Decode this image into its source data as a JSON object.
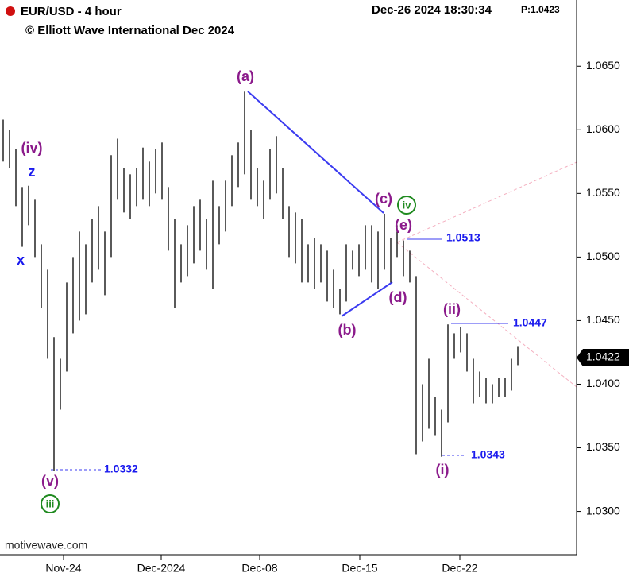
{
  "chart_data": {
    "type": "ohlc",
    "title": "EUR/USD - 4 hour",
    "subtitle": "© Elliott Wave International Dec 2024",
    "timestamp": "Dec-26 2024 18:30:34",
    "price_header": "P:1.0423",
    "current_price": "1.0422",
    "source": "motivewave.com",
    "color": "#000000",
    "x": [
      0,
      1,
      2,
      3,
      4,
      5,
      6,
      7,
      8,
      9,
      10,
      11,
      12,
      13,
      14,
      15,
      16,
      17,
      18,
      19,
      20,
      21,
      22,
      23,
      24,
      25,
      26,
      27,
      28,
      29,
      30,
      31,
      32,
      33,
      34,
      35,
      36,
      37,
      38,
      39,
      40,
      41,
      42,
      43,
      44,
      45,
      46,
      47,
      48,
      49,
      50,
      51,
      52,
      53,
      54,
      55,
      56,
      57,
      58,
      59,
      60,
      61,
      62,
      63,
      64,
      65,
      66,
      67,
      68,
      69,
      70,
      71,
      72,
      73,
      74,
      75,
      76,
      77,
      78,
      79,
      80,
      81
    ],
    "high": [
      1.0608,
      1.06,
      1.0585,
      1.0555,
      1.0556,
      1.0545,
      1.051,
      1.049,
      1.0437,
      1.042,
      1.048,
      1.05,
      1.052,
      1.051,
      1.053,
      1.054,
      1.052,
      1.058,
      1.0593,
      1.057,
      1.0565,
      1.057,
      1.0586,
      1.0575,
      1.0585,
      1.059,
      1.0555,
      1.053,
      1.051,
      1.0525,
      1.054,
      1.0545,
      1.053,
      1.056,
      1.054,
      1.056,
      1.058,
      1.059,
      1.063,
      1.06,
      1.057,
      1.056,
      1.0585,
      1.0595,
      1.057,
      1.054,
      1.0535,
      1.053,
      1.051,
      1.0515,
      1.051,
      1.0505,
      1.049,
      1.0475,
      1.051,
      1.0505,
      1.051,
      1.0525,
      1.0525,
      1.052,
      1.0534,
      1.0515,
      1.0525,
      1.0513,
      1.0505,
      1.0485,
      1.04,
      1.042,
      1.039,
      1.038,
      1.0447,
      1.044,
      1.0445,
      1.044,
      1.042,
      1.041,
      1.0405,
      1.04,
      1.0405,
      1.0405,
      1.042,
      1.043
    ],
    "low": [
      1.0575,
      1.057,
      1.054,
      1.0508,
      1.0525,
      1.05,
      1.046,
      1.042,
      1.0332,
      1.038,
      1.041,
      1.044,
      1.045,
      1.0455,
      1.048,
      1.049,
      1.047,
      1.05,
      1.0545,
      1.0535,
      1.053,
      1.054,
      1.0545,
      1.054,
      1.055,
      1.0545,
      1.0505,
      1.046,
      1.048,
      1.0485,
      1.0495,
      1.0505,
      1.049,
      1.0475,
      1.051,
      1.052,
      1.054,
      1.0555,
      1.0565,
      1.0545,
      1.054,
      1.053,
      1.0545,
      1.055,
      1.053,
      1.05,
      1.0495,
      1.048,
      1.048,
      1.0475,
      1.048,
      1.0465,
      1.046,
      1.0455,
      1.0465,
      1.049,
      1.0485,
      1.049,
      1.048,
      1.0475,
      1.049,
      1.048,
      1.05,
      1.0485,
      1.048,
      1.0345,
      1.0355,
      1.0365,
      1.036,
      1.0343,
      1.037,
      1.042,
      1.0425,
      1.041,
      1.0385,
      1.039,
      1.0385,
      1.0385,
      1.039,
      1.039,
      1.0395,
      1.0415
    ],
    "xlim": [
      -0.5,
      90.25
    ],
    "ylim": [
      1.0266,
      1.0702
    ],
    "xticks": [
      {
        "value": 9.5,
        "label": "Nov-24"
      },
      {
        "value": 24.875,
        "label": "Dec-2024"
      },
      {
        "value": 40.375,
        "label": "Dec-08"
      },
      {
        "value": 56.125,
        "label": "Dec-15"
      },
      {
        "value": 71.875,
        "label": "Dec-22"
      }
    ],
    "yticks": [
      {
        "value": 1.03,
        "label": "1.0300"
      },
      {
        "value": 1.035,
        "label": "1.0350"
      },
      {
        "value": 1.04,
        "label": "1.0400"
      },
      {
        "value": 1.045,
        "label": "1.0450"
      },
      {
        "value": 1.05,
        "label": "1.0500"
      },
      {
        "value": 1.055,
        "label": "1.0550"
      },
      {
        "value": 1.06,
        "label": "1.0600"
      },
      {
        "value": 1.065,
        "label": "1.0650"
      }
    ],
    "annotations": [
      "(a)",
      "(b)",
      "(c)",
      "(d)",
      "(e)",
      "(ii)",
      "(i)",
      "(iv)",
      "z",
      "x",
      "(v)",
      "iii",
      "iv",
      "1.0513",
      "1.0447",
      "1.0343",
      "1.0332"
    ]
  }
}
